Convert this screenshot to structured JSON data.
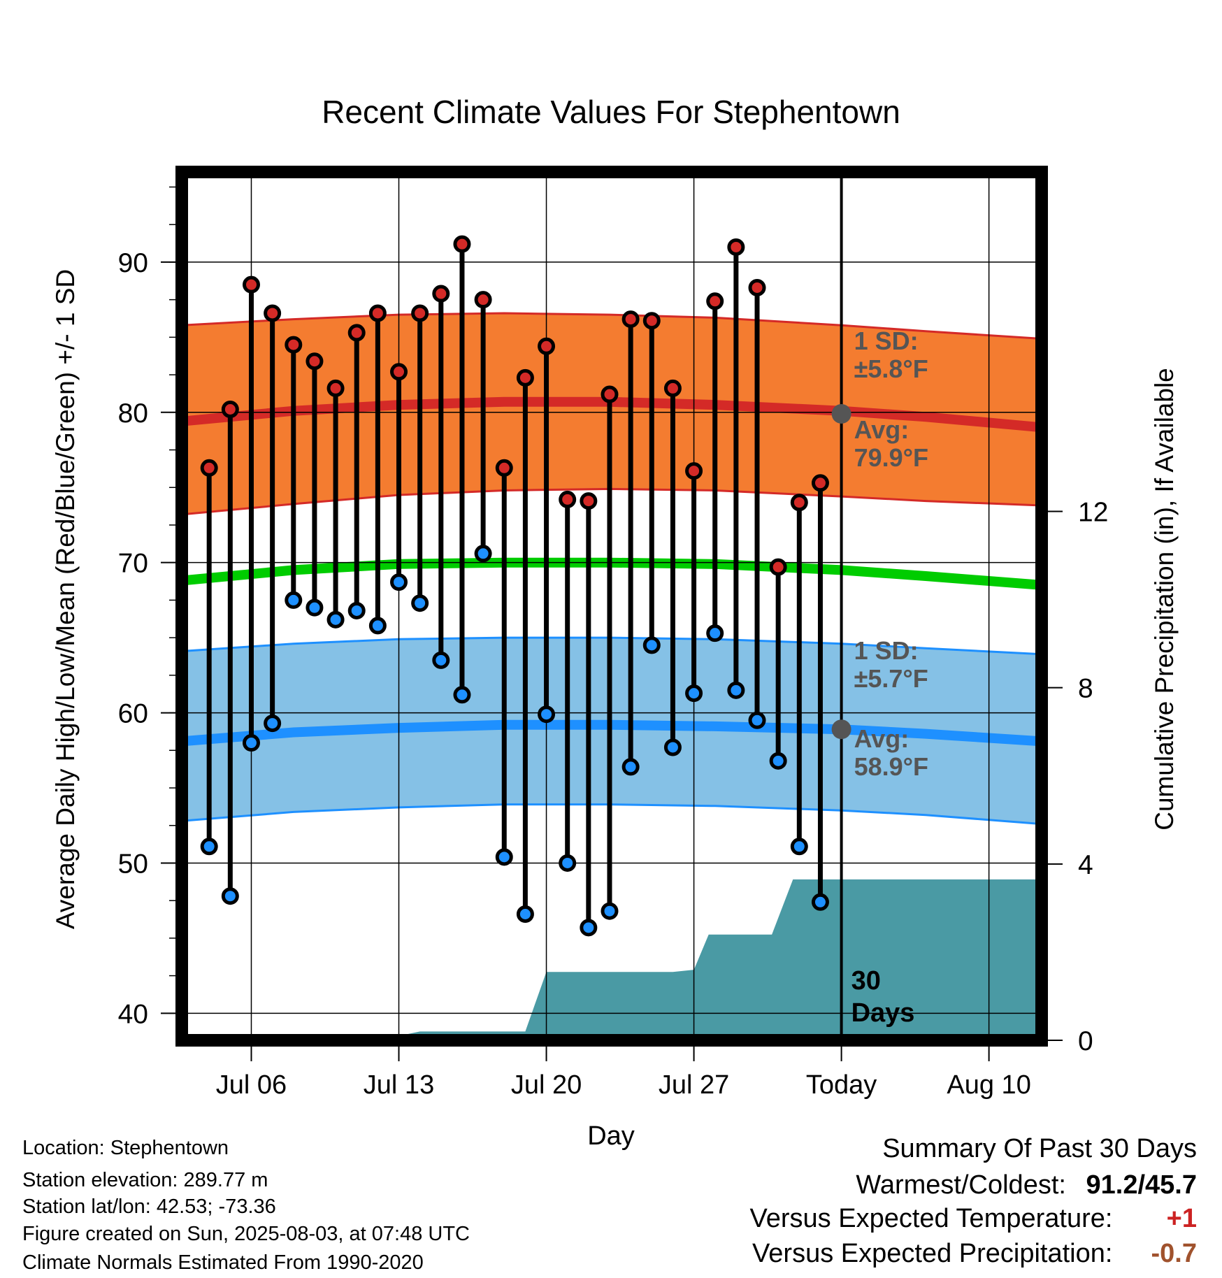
{
  "chart_data": {
    "type": "line",
    "title": "Recent Climate Values For Stephentown",
    "xlabel": "Day",
    "ylabel": "Average Daily High/Low/Mean (Red/Blue/Green) +/- 1 SD",
    "y2label": "Cumulative Precipitation (in), If Available",
    "ylim": [
      38.2,
      96
    ],
    "y2lim": [
      0,
      19.7
    ],
    "y_ticks": [
      "40",
      "50",
      "60",
      "70",
      "80",
      "90"
    ],
    "y2_ticks": [
      "0",
      "4",
      "8",
      "12"
    ],
    "x_ticks": [
      {
        "label": "Jul 06",
        "day": 3
      },
      {
        "label": "Jul 13",
        "day": 10
      },
      {
        "label": "Jul 20",
        "day": 17
      },
      {
        "label": "Jul 27",
        "day": 24
      },
      {
        "label": "Today",
        "day": 31
      },
      {
        "label": "Aug 10",
        "day": 38
      }
    ],
    "xlim": [
      -0.3,
      40.5
    ],
    "today_day": 31,
    "grid": true,
    "days": [
      "Jul 04",
      "Jul 05",
      "Jul 06",
      "Jul 07",
      "Jul 08",
      "Jul 09",
      "Jul 10",
      "Jul 11",
      "Jul 12",
      "Jul 13",
      "Jul 14",
      "Jul 15",
      "Jul 16",
      "Jul 17",
      "Jul 18",
      "Jul 19",
      "Jul 20",
      "Jul 21",
      "Jul 22",
      "Jul 23",
      "Jul 24",
      "Jul 25",
      "Jul 26",
      "Jul 27",
      "Jul 28",
      "Jul 29",
      "Jul 30",
      "Jul 31",
      "Aug 01",
      "Aug 02"
    ],
    "highs": [
      76.3,
      80.2,
      88.5,
      86.6,
      84.5,
      83.4,
      81.6,
      85.3,
      86.6,
      82.7,
      86.6,
      87.9,
      91.2,
      87.5,
      76.3,
      82.3,
      84.4,
      74.2,
      74.1,
      81.2,
      86.2,
      86.1,
      81.6,
      76.1,
      87.4,
      91.0,
      88.3,
      69.7,
      74.0,
      75.3
    ],
    "lows": [
      51.1,
      47.8,
      58.0,
      59.3,
      67.5,
      67.0,
      66.2,
      66.8,
      65.8,
      68.7,
      67.3,
      63.5,
      61.2,
      70.6,
      50.4,
      46.6,
      59.9,
      50.0,
      45.7,
      46.8,
      56.4,
      64.5,
      57.7,
      61.3,
      65.3,
      61.5,
      59.5,
      56.8,
      51.1,
      47.4
    ],
    "normals": {
      "days": [
        -0.3,
        5,
        10,
        15,
        20,
        25,
        31,
        35,
        40.5
      ],
      "high_avg": [
        79.4,
        80.1,
        80.5,
        80.7,
        80.7,
        80.5,
        80.1,
        79.7,
        79.0
      ],
      "high_upper": [
        85.8,
        86.2,
        86.5,
        86.6,
        86.5,
        86.3,
        85.8,
        85.4,
        84.9
      ],
      "high_lower": [
        73.2,
        73.9,
        74.5,
        74.8,
        74.9,
        74.8,
        74.4,
        74.1,
        73.8
      ],
      "mean_avg": [
        68.8,
        69.5,
        69.9,
        70.0,
        70.0,
        69.9,
        69.5,
        69.1,
        68.5
      ],
      "low_avg": [
        58.1,
        58.7,
        59.0,
        59.2,
        59.2,
        59.1,
        58.9,
        58.6,
        58.1
      ],
      "low_upper": [
        64.1,
        64.6,
        64.9,
        65.0,
        65.0,
        64.9,
        64.6,
        64.3,
        63.9
      ],
      "low_lower": [
        52.8,
        53.4,
        53.7,
        53.9,
        53.9,
        53.8,
        53.5,
        53.2,
        52.6
      ]
    },
    "precip_cumulative": [
      {
        "day": -0.3,
        "value": 0
      },
      {
        "day": 6,
        "value": 0
      },
      {
        "day": 7,
        "value": 0.1
      },
      {
        "day": 10,
        "value": 0.1
      },
      {
        "day": 11,
        "value": 0.2
      },
      {
        "day": 16,
        "value": 0.2
      },
      {
        "day": 17,
        "value": 1.55
      },
      {
        "day": 23,
        "value": 1.55
      },
      {
        "day": 24,
        "value": 1.6
      },
      {
        "day": 24.7,
        "value": 2.4
      },
      {
        "day": 27.7,
        "value": 2.4
      },
      {
        "day": 28.7,
        "value": 3.65
      },
      {
        "day": 40.5,
        "value": 3.65
      }
    ],
    "annotations": {
      "high_sd": [
        "1 SD:",
        "±5.8°F"
      ],
      "high_avg": [
        "Avg:",
        "79.9°F"
      ],
      "low_sd": [
        "1 SD:",
        "±5.7°F"
      ],
      "low_avg": [
        "Avg:",
        "58.9°F"
      ],
      "period": [
        "30",
        "Days"
      ]
    },
    "markers": {
      "today_high": 79.9,
      "today_low": 58.9
    }
  },
  "info": {
    "location": "Location: Stephentown",
    "elevation": "Station elevation: 289.77 m",
    "latlon": "Station lat/lon: 42.53; -73.36",
    "created": "Figure created on Sun, 2025-08-03, at 07:48 UTC",
    "normals": "Climate Normals Estimated From 1990-2020"
  },
  "summary": {
    "heading": "Summary Of Past 30 Days",
    "warm_cold_label": "Warmest/Coldest:",
    "warm_cold_value": "91.2/45.7",
    "temp_label": "Versus Expected Temperature:",
    "temp_value": "+1",
    "precip_label": "Versus Expected Precipitation:",
    "precip_value": "-0.7"
  },
  "colors": {
    "high_band": "#f47c30",
    "high_line": "#d42a27",
    "low_band": "#85c1e6",
    "low_line": "#1e90ff",
    "mean_line": "#00cc00",
    "precip": "#4a9aa4",
    "high_dot": "#d42a27",
    "low_dot": "#1e90ff",
    "annotation": "#555555",
    "temp_diff": "#cc2222",
    "precip_diff": "#a0522d"
  }
}
